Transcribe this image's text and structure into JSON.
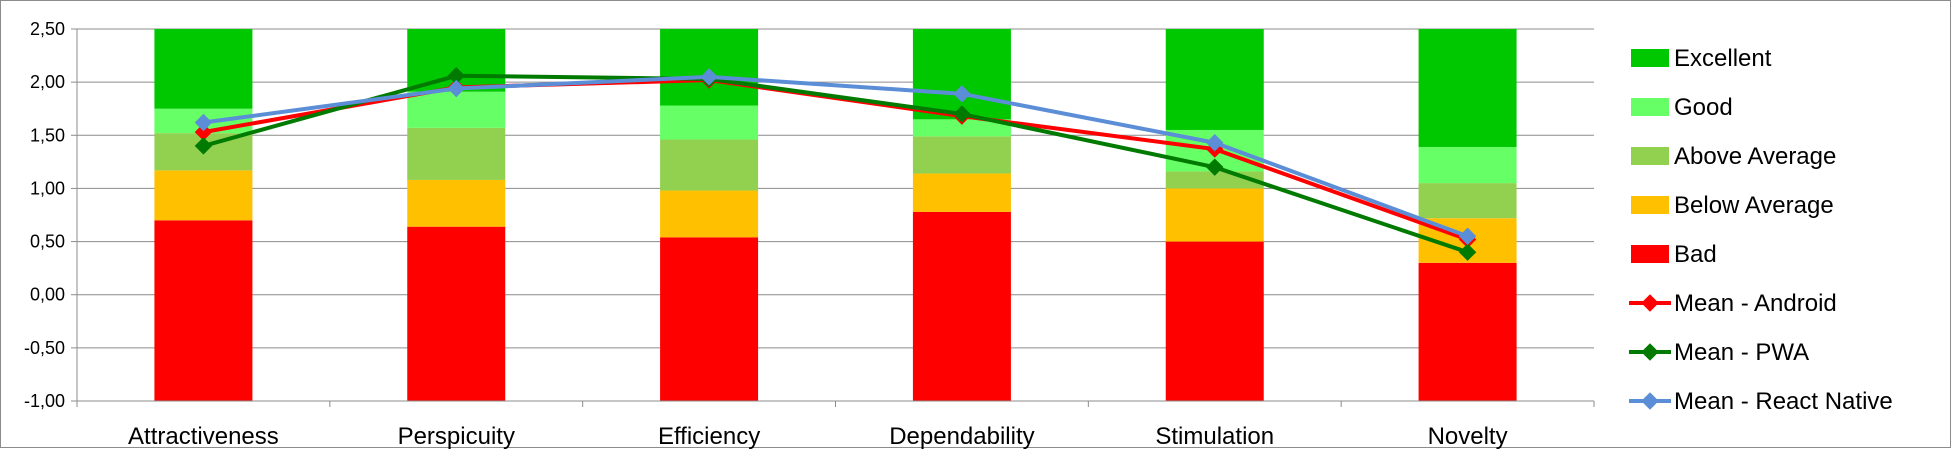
{
  "chart_data": {
    "type": "bar",
    "stacked": true,
    "categories": [
      "Attractiveness",
      "Perspicuity",
      "Efficiency",
      "Dependability",
      "Stimulation",
      "Novelty"
    ],
    "ylim": [
      -1.0,
      2.5
    ],
    "yticks": [
      "-1,00",
      "-0,50",
      "0,00",
      "0,50",
      "1,00",
      "1,50",
      "2,00",
      "2,50"
    ],
    "ytick_values": [
      -1.0,
      -0.5,
      0.0,
      0.5,
      1.0,
      1.5,
      2.0,
      2.5
    ],
    "grid": true,
    "legend_position": "right",
    "bar_series": [
      {
        "name": "Bad",
        "color": "#ff0000",
        "tops": [
          0.7,
          0.64,
          0.54,
          0.78,
          0.5,
          0.3
        ]
      },
      {
        "name": "Below Average",
        "color": "#ffc000",
        "tops": [
          1.17,
          1.08,
          0.98,
          1.14,
          1.0,
          0.72
        ]
      },
      {
        "name": "Above Average",
        "color": "#92d050",
        "tops": [
          1.52,
          1.57,
          1.46,
          1.49,
          1.16,
          1.05
        ]
      },
      {
        "name": "Good",
        "color": "#66ff66",
        "tops": [
          1.75,
          1.91,
          1.78,
          1.65,
          1.55,
          1.39
        ]
      },
      {
        "name": "Excellent",
        "color": "#00c800",
        "tops": [
          2.5,
          2.5,
          2.5,
          2.5,
          2.5,
          2.5
        ]
      }
    ],
    "line_series": [
      {
        "name": "Mean - Android",
        "color": "#ff0000",
        "values": [
          1.53,
          1.95,
          2.02,
          1.68,
          1.37,
          0.52
        ]
      },
      {
        "name": "Mean - PWA",
        "color": "#007a00",
        "values": [
          1.4,
          2.06,
          2.03,
          1.7,
          1.2,
          0.4
        ]
      },
      {
        "name": "Mean - React Native",
        "color": "#5b8ed6",
        "values": [
          1.62,
          1.94,
          2.05,
          1.89,
          1.43,
          0.55
        ]
      }
    ],
    "legend": [
      "Excellent",
      "Good",
      "Above Average",
      "Below Average",
      "Bad",
      "Mean - Android",
      "Mean - PWA",
      "Mean - React Native"
    ]
  }
}
